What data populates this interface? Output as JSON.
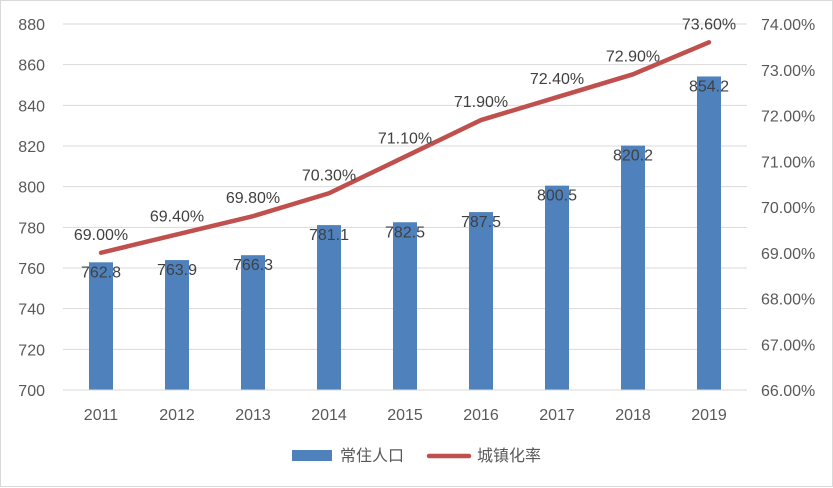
{
  "chart_data": {
    "type": "bar+line",
    "categories": [
      "2011",
      "2012",
      "2013",
      "2014",
      "2015",
      "2016",
      "2017",
      "2018",
      "2019"
    ],
    "series": [
      {
        "name": "常住人口",
        "type": "bar",
        "axis": "left",
        "color": "#4f81bd",
        "values": [
          762.8,
          763.9,
          766.3,
          781.1,
          782.5,
          787.5,
          800.5,
          820.2,
          854.2
        ],
        "labels": [
          "762.8",
          "763.9",
          "766.3",
          "781.1",
          "782.5",
          "787.5",
          "800.5",
          "820.2",
          "854.2"
        ]
      },
      {
        "name": "城镇化率",
        "type": "line",
        "axis": "right",
        "color": "#c0504d",
        "values": [
          69.0,
          69.4,
          69.8,
          70.3,
          71.1,
          71.9,
          72.4,
          72.9,
          73.6
        ],
        "labels": [
          "69.00%",
          "69.40%",
          "69.80%",
          "70.30%",
          "71.10%",
          "71.90%",
          "72.40%",
          "72.90%",
          "73.60%"
        ]
      }
    ],
    "y_left": {
      "ylim": [
        700,
        880
      ],
      "ticks": [
        "700",
        "720",
        "740",
        "760",
        "780",
        "800",
        "820",
        "840",
        "860",
        "880"
      ]
    },
    "y_right": {
      "ylim": [
        66,
        74
      ],
      "ticks": [
        "66.00%",
        "67.00%",
        "68.00%",
        "69.00%",
        "70.00%",
        "71.00%",
        "72.00%",
        "73.00%",
        "74.00%"
      ]
    },
    "grid": true,
    "legend_position": "bottom"
  }
}
